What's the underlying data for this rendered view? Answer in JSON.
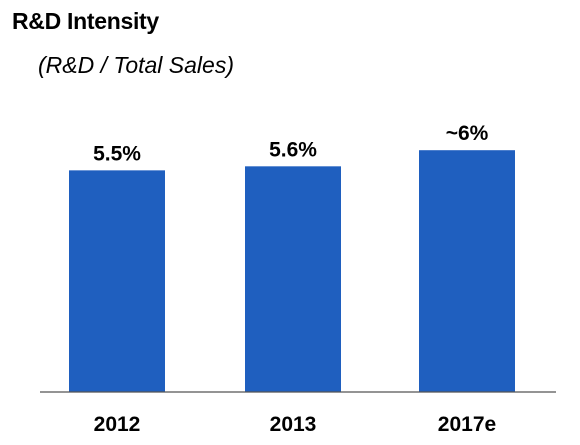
{
  "chart_data": {
    "type": "bar",
    "title": "R&D Intensity",
    "subtitle": "(R&D / Total Sales)",
    "categories": [
      "2012",
      "2013",
      "2017e"
    ],
    "values": [
      5.5,
      5.6,
      6
    ],
    "data_labels": [
      "5.5%",
      "5.6%",
      "~6%"
    ],
    "xlabel": "",
    "ylabel": "",
    "grid": false,
    "legend": "none",
    "bar_color": "#1f5fbf",
    "axis_color": "#555555"
  }
}
